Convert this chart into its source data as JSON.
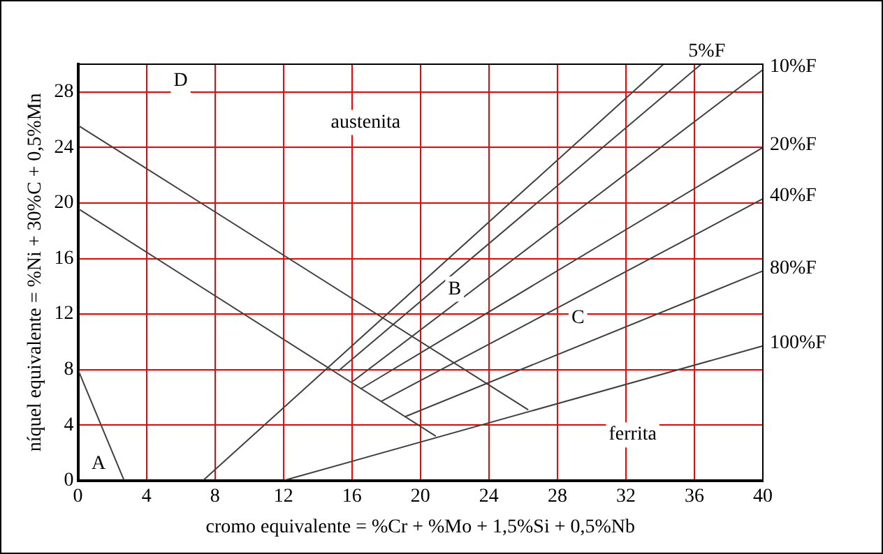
{
  "chart_data": {
    "type": "line",
    "xlabel": "cromo equivalente = %Cr + %Mo + 1,5%Si + 0,5%Nb",
    "ylabel": "níquel equivalente = %Ni + 30%C + 0,5%Mn",
    "xlim": [
      0,
      40
    ],
    "ylim": [
      0,
      30
    ],
    "xticks": [
      0,
      4,
      8,
      12,
      16,
      20,
      24,
      28,
      32,
      36,
      40
    ],
    "yticks": [
      0,
      4,
      8,
      12,
      16,
      20,
      24,
      28
    ],
    "grid": true,
    "marker": "none",
    "line_style": "solid",
    "legend": false,
    "series": [
      {
        "color": "#404040",
        "x": [
          0,
          2.7
        ],
        "values": [
          8,
          0
        ]
      },
      {
        "color": "#404040",
        "x": [
          7.3,
          34.2
        ],
        "values": [
          0,
          30
        ]
      },
      {
        "color": "#404040",
        "x": [
          0,
          26.3
        ],
        "values": [
          25.6,
          5.1
        ]
      },
      {
        "color": "#404040",
        "x": [
          0,
          20.9
        ],
        "values": [
          19.6,
          3.2
        ]
      },
      {
        "name": "5%F",
        "color": "#404040",
        "x": [
          15.2,
          36.4
        ],
        "values": [
          7.9,
          30
        ]
      },
      {
        "name": "10%F",
        "color": "#404040",
        "x": [
          16,
          40
        ],
        "values": [
          7.1,
          29.6
        ]
      },
      {
        "name": "20%F",
        "color": "#404040",
        "x": [
          16.5,
          40
        ],
        "values": [
          6.6,
          24
        ]
      },
      {
        "name": "40%F",
        "color": "#404040",
        "x": [
          17.7,
          40
        ],
        "values": [
          5.7,
          20.3
        ]
      },
      {
        "name": "80%F",
        "color": "#404040",
        "x": [
          19.1,
          40
        ],
        "values": [
          4.6,
          15.1
        ]
      },
      {
        "name": "100%F",
        "color": "#404040",
        "x": [
          12,
          40
        ],
        "values": [
          0,
          9.7
        ]
      }
    ],
    "annotations": [
      "A",
      "D",
      "austenita",
      "B",
      "C",
      "ferrita"
    ]
  }
}
